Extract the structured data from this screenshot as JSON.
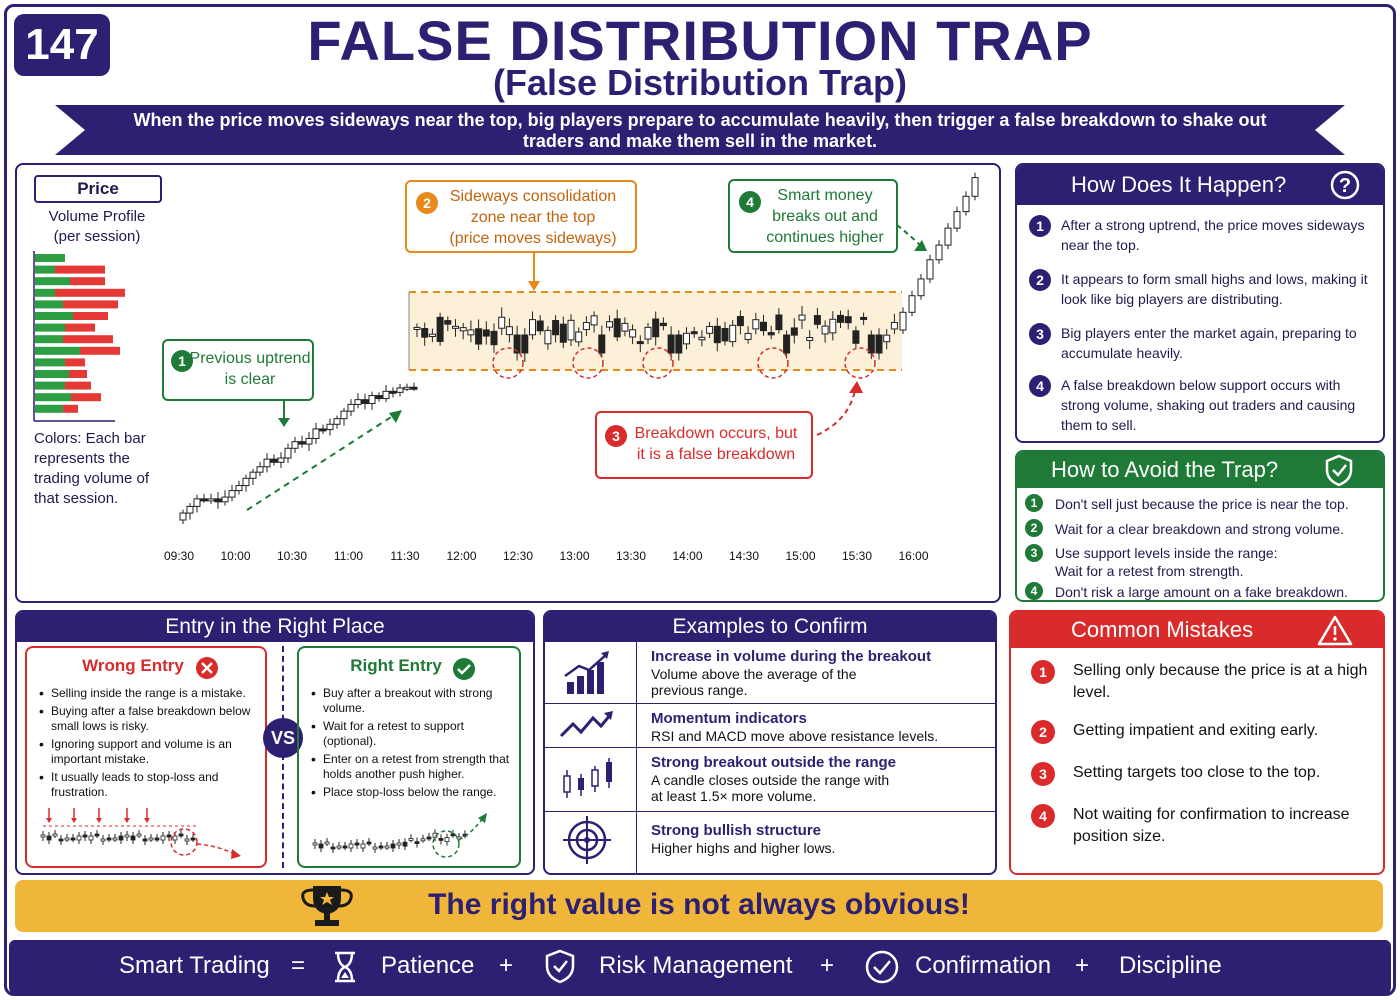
{
  "badge": "147",
  "title": "FALSE DISTRIBUTION TRAP",
  "subtitle": "(False Distribution Trap)",
  "banner": "When the price moves sideways near the top, big players prepare to accumulate heavily, then trigger a false breakdown to shake out traders and make them sell in the market.",
  "chart": {
    "price_label": "Price",
    "volume_profile": "Volume Profile\n(per session)",
    "colors_note": "Colors: Each bar represents the trading volume of that session.",
    "callout1": {
      "n": "1",
      "text": "Previous uptrend\nis clear"
    },
    "callout2": {
      "n": "2",
      "text": "Sideways consolidation\nzone near the top\n(price moves sideways)"
    },
    "callout3": {
      "n": "3",
      "text": "Breakdown occurs, but\nit is a false breakdown"
    },
    "callout4": {
      "n": "4",
      "text": "Smart money\nbreaks out and\ncontinues higher"
    },
    "time_labels": [
      "09:30",
      "10:00",
      "10:30",
      "11:00",
      "11:30",
      "12:00",
      "12:30",
      "13:00",
      "13:30",
      "14:00",
      "14:30",
      "15:00",
      "15:30",
      "16:00"
    ],
    "colors": {
      "up": "#2e9e44",
      "down": "#e53935",
      "orange": "#e8891e",
      "green": "#1e7a36",
      "red": "#d92b2b"
    }
  },
  "how": {
    "title": "How Does It Happen?",
    "icon": "question-icon",
    "items": [
      "After a strong uptrend, the price moves sideways near the top.",
      "It appears to form small highs and lows, making it look like big players are distributing.",
      "Big players enter the market again, preparing to accumulate heavily.",
      "A false breakdown below support occurs with strong volume, shaking out traders and causing them to sell."
    ]
  },
  "avoid": {
    "title": "How to Avoid the Trap?",
    "icon": "shield-check-icon",
    "items": [
      "Don't sell just because the price is near the top.",
      "Wait for a clear breakdown and strong volume.",
      "Use support levels inside the range:\nWait for a retest from strength.",
      "Don't risk a large amount on a fake breakdown."
    ]
  },
  "entry": {
    "title": "Entry in the Right Place",
    "wrong_title": "Wrong Entry",
    "wrong_items": [
      "Selling inside the range is a mistake.",
      "Buying after a false breakdown below small lows is risky.",
      "Ignoring support and volume is an important mistake.",
      "It usually leads to stop-loss and frustration."
    ],
    "vs": "VS",
    "right_title": "Right Entry",
    "right_items": [
      "Buy after a breakout with strong volume.",
      "Wait for a retest to support (optional).",
      "Enter on a retest from strength that holds another push higher.",
      "Place stop-loss below the range."
    ]
  },
  "examples": {
    "title": "Examples to Confirm",
    "rows": [
      {
        "icon": "bar-chart-up-icon",
        "title": "Increase in volume during the breakout",
        "desc": "Volume above the average of the\nprevious range."
      },
      {
        "icon": "trend-line-icon",
        "title": "Momentum indicators",
        "desc": "RSI and MACD move above resistance levels."
      },
      {
        "icon": "candles-icon",
        "title": "Strong breakout outside the range",
        "desc": "A candle closes outside the range with\nat least 1.5× more volume."
      },
      {
        "icon": "target-icon",
        "title": "Strong bullish structure",
        "desc": "Higher highs and higher lows."
      }
    ]
  },
  "mistakes": {
    "title": "Common Mistakes",
    "icon": "warning-icon",
    "items": [
      "Selling only because the price is at a high level.",
      "Getting impatient and exiting early.",
      "Setting targets too close to the top.",
      "Not waiting for confirmation to increase position size."
    ]
  },
  "gold_banner": "The right value is not always obvious!",
  "footer": {
    "smart": "Smart Trading",
    "eq": "=",
    "patience": "Patience",
    "plus": "+",
    "risk": "Risk Management",
    "confirmation": "Confirmation",
    "discipline": "Discipline"
  }
}
